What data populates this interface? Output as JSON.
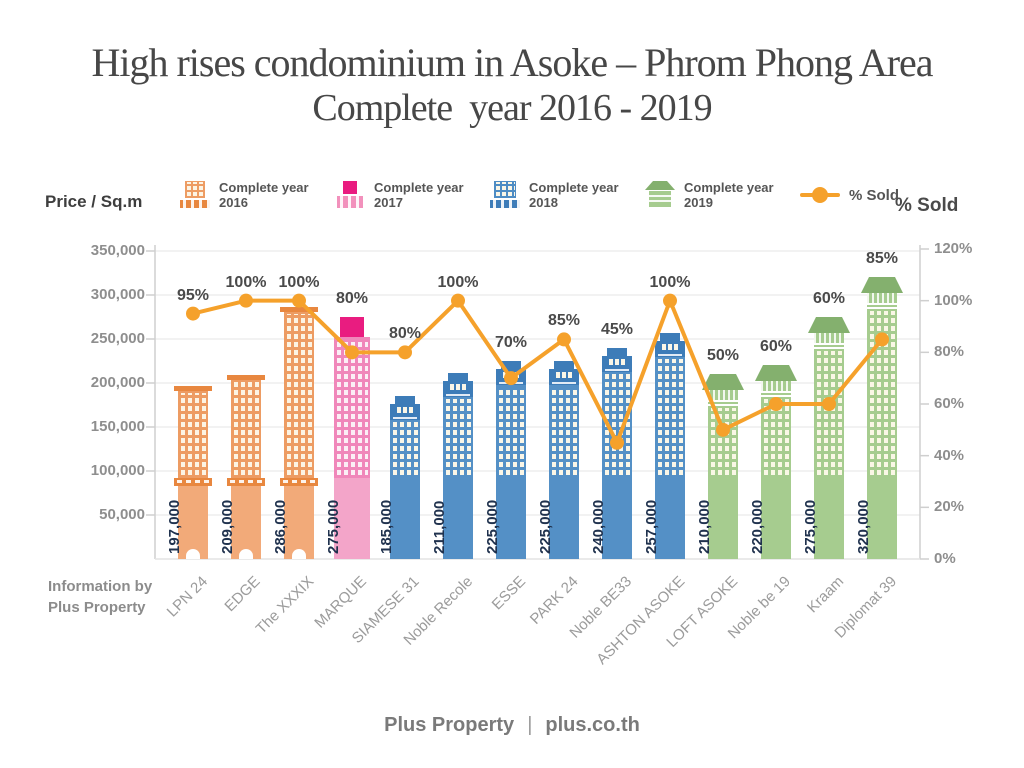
{
  "title": {
    "line1": "High rises condominium in Asoke – Phrom Phong Area",
    "line2": "Complete  year 2016 - 2019"
  },
  "left_axis_header": "Price / Sq.m",
  "right_axis_header": "% Sold",
  "legend": [
    {
      "id": "y2016",
      "l1": "Complete year",
      "l2": "2016"
    },
    {
      "id": "y2017",
      "l1": "Complete year",
      "l2": "2017"
    },
    {
      "id": "y2018",
      "l1": "Complete year",
      "l2": "2018"
    },
    {
      "id": "y2019",
      "l1": "Complete year",
      "l2": "2019"
    },
    {
      "id": "sold",
      "l1": "% Sold",
      "l2": ""
    }
  ],
  "info_note": {
    "line1": "Information by",
    "line2": "Plus Property"
  },
  "footer": {
    "brand": "Plus Property",
    "separator": "|",
    "site": "plus.co.th"
  },
  "chart_data": {
    "type": "bar+line",
    "title": "High rises condominium in Asoke – Phrom Phong Area Complete year 2016 - 2019",
    "categories": [
      "LPN 24",
      "EDGE",
      "The XXXIX",
      "MARQUE",
      "SIAMESE 31",
      "Noble Recole",
      "ESSE",
      "PARK 24",
      "Noble BE33",
      "ASHTON ASOKE",
      "LOFT ASOKE",
      "Noble be 19",
      "Kraam",
      "Diplomat 39"
    ],
    "series": [
      {
        "name": "Price / Sq.m",
        "type": "bar",
        "values": [
          197000,
          209000,
          286000,
          275000,
          185000,
          211000,
          225000,
          225000,
          240000,
          257000,
          210000,
          220000,
          275000,
          320000
        ],
        "labels": [
          "197,000",
          "209,000",
          "286,000",
          "275,000",
          "185,000",
          "211,000",
          "225,000",
          "225,000",
          "240,000",
          "257,000",
          "210,000",
          "220,000",
          "275,000",
          "320,000"
        ],
        "years": [
          2016,
          2016,
          2016,
          2017,
          2018,
          2018,
          2018,
          2018,
          2018,
          2018,
          2019,
          2019,
          2019,
          2019
        ]
      },
      {
        "name": "% Sold",
        "type": "line",
        "values": [
          95,
          100,
          100,
          80,
          80,
          100,
          70,
          85,
          45,
          100,
          50,
          60,
          60,
          85
        ],
        "labels": [
          "95%",
          "100%",
          "100%",
          "80%",
          "80%",
          "100%",
          "70%",
          "85%",
          "45%",
          "100%",
          "50%",
          "60%",
          "60%",
          "85%"
        ]
      }
    ],
    "left_axis": {
      "label": "Price / Sq.m",
      "min": 0,
      "max": 350000,
      "step": 50000,
      "ticks": [
        "50,000",
        "100,000",
        "150,000",
        "200,000",
        "250,000",
        "300,000",
        "350,000"
      ]
    },
    "right_axis": {
      "label": "% Sold",
      "min": 0,
      "max": 120,
      "step": 20,
      "ticks": [
        "0%",
        "20%",
        "40%",
        "60%",
        "80%",
        "100%",
        "120%"
      ]
    },
    "legend_position": "top",
    "grid": "horizontal",
    "colors": {
      "y2016": {
        "base": "#F2AA79",
        "frame": "#ED9C63",
        "dark": "#E8873F",
        "window": "#FCF4E4"
      },
      "y2017": {
        "base": "#F3A5C9",
        "frame": "#F087BA",
        "dark": "#E91C80",
        "window": "#FBEFF5"
      },
      "y2018": {
        "base": "#5490C6",
        "frame": "#5490C6",
        "dark": "#3D7CB8",
        "window": "#FAF6E7"
      },
      "y2019": {
        "base": "#A6CC8F",
        "frame": "#A6CC8F",
        "dark": "#84B06E",
        "window": "#FAF7E6"
      },
      "line": "#F5A12B",
      "grid": "#E4E4E4",
      "axis": "#CFCFCF",
      "value_text": "#20324E",
      "pct_text": "#4A4A4A",
      "tick_text": "#8E8E8E",
      "category_text": "#9B9B9B"
    }
  }
}
